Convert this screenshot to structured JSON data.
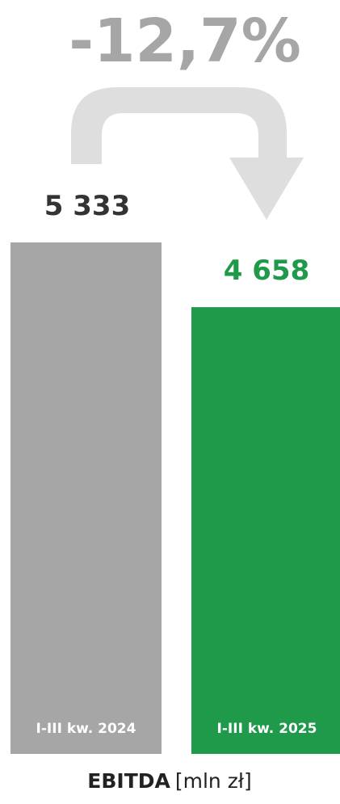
{
  "chart_data": {
    "type": "bar",
    "categories": [
      "I-III kw. 2024",
      "I-III kw. 2025"
    ],
    "values": [
      5333,
      4658
    ],
    "value_labels": [
      "5 333",
      "4 658"
    ],
    "change_label": "-12,7%",
    "caption_metric": "EBITDA",
    "caption_unit": "[mln zł]",
    "colors": {
      "bar_2024": "#a6a6a6",
      "bar_2025": "#1e9a4a",
      "label_2024": "#333333",
      "label_2025": "#1e9a4a",
      "change_text": "#a6a6a6",
      "arrow": "#dedede",
      "category_text": "#ffffff",
      "caption_text": "#222222"
    }
  }
}
